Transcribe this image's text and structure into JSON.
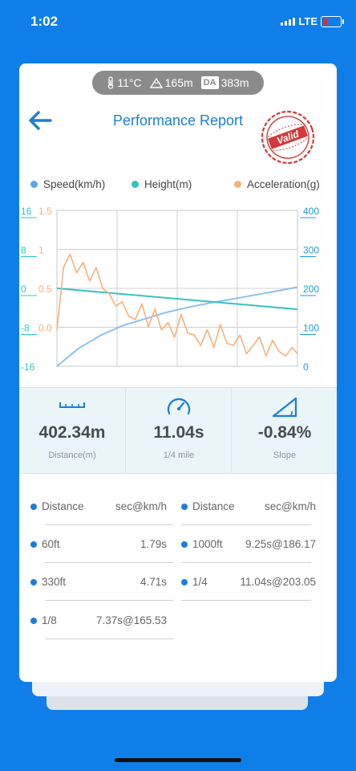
{
  "status": {
    "time": "1:02",
    "network": "LTE"
  },
  "conditions": {
    "temperature": "11°C",
    "altitude": "165m",
    "da_badge": "DA",
    "density_altitude": "383m"
  },
  "header": {
    "title": "Performance Report",
    "stamp_text": "Valid"
  },
  "legend": [
    {
      "label": "Speed(km/h)",
      "color": "#5aa6e8"
    },
    {
      "label": "Height(m)",
      "color": "#2ec4c4"
    },
    {
      "label": "Acceleration(g)",
      "color": "#f6b07c"
    }
  ],
  "chart_data": {
    "type": "line",
    "left_axis_height": {
      "ticks": [
        "16",
        "8",
        "0",
        "-8",
        "-16"
      ],
      "color": "#2ec4c4"
    },
    "left_axis_accel": {
      "ticks": [
        "1.5",
        "1",
        "0.5",
        "0.0"
      ],
      "color": "#f6b07c"
    },
    "right_axis_speed": {
      "ticks": [
        "400",
        "300",
        "200",
        "100",
        "0"
      ],
      "color": "#1b9ed8"
    },
    "x_range": [
      0,
      11.04
    ],
    "series": [
      {
        "name": "Speed(km/h)",
        "axis": "speed",
        "ylim": [
          0,
          400
        ],
        "x": [
          0,
          1,
          2,
          3,
          4,
          5,
          6,
          7,
          8,
          9,
          10,
          11.04
        ],
        "y": [
          0,
          46,
          79,
          104,
          121,
          138,
          151,
          162,
          172,
          182,
          192,
          203
        ]
      },
      {
        "name": "Height(m)",
        "axis": "height",
        "ylim": [
          -16,
          16
        ],
        "x": [
          0,
          11.04
        ],
        "y": [
          0,
          -4.3
        ]
      },
      {
        "name": "Acceleration(g)",
        "axis": "accel",
        "ylim": [
          0.0,
          1.5
        ],
        "x": [
          0,
          0.3,
          0.6,
          0.9,
          1.2,
          1.5,
          1.8,
          2.1,
          2.4,
          2.7,
          3.0,
          3.3,
          3.6,
          3.9,
          4.2,
          4.5,
          4.8,
          5.1,
          5.4,
          5.7,
          6.0,
          6.3,
          6.6,
          6.9,
          7.2,
          7.5,
          7.8,
          8.1,
          8.4,
          8.7,
          9.0,
          9.3,
          9.6,
          9.9,
          10.2,
          10.5,
          10.8,
          11.04
        ],
        "y": [
          0.35,
          0.95,
          1.08,
          0.9,
          1.0,
          0.82,
          0.95,
          0.75,
          0.7,
          0.58,
          0.62,
          0.48,
          0.45,
          0.6,
          0.38,
          0.55,
          0.35,
          0.42,
          0.28,
          0.5,
          0.32,
          0.3,
          0.2,
          0.35,
          0.18,
          0.4,
          0.22,
          0.2,
          0.3,
          0.12,
          0.2,
          0.28,
          0.1,
          0.25,
          0.14,
          0.1,
          0.18,
          0.12
        ]
      }
    ]
  },
  "stats": [
    {
      "icon": "ruler-icon",
      "value": "402.34m",
      "label": "Distance(m)"
    },
    {
      "icon": "speedometer-icon",
      "value": "11.04s",
      "label": "1/4 mile"
    },
    {
      "icon": "slope-icon",
      "value": "-0.84%",
      "label": "Slope"
    }
  ],
  "splits": {
    "header": {
      "distance": "Distance",
      "value": "sec@km/h"
    },
    "left": [
      {
        "distance": "60ft",
        "value": "1.79s"
      },
      {
        "distance": "330ft",
        "value": "4.71s"
      },
      {
        "distance": "1/8",
        "value": "7.37s@165.53"
      }
    ],
    "right": [
      {
        "distance": "1000ft",
        "value": "9.25s@186.17"
      },
      {
        "distance": "1/4",
        "value": "11.04s@203.05"
      }
    ]
  }
}
